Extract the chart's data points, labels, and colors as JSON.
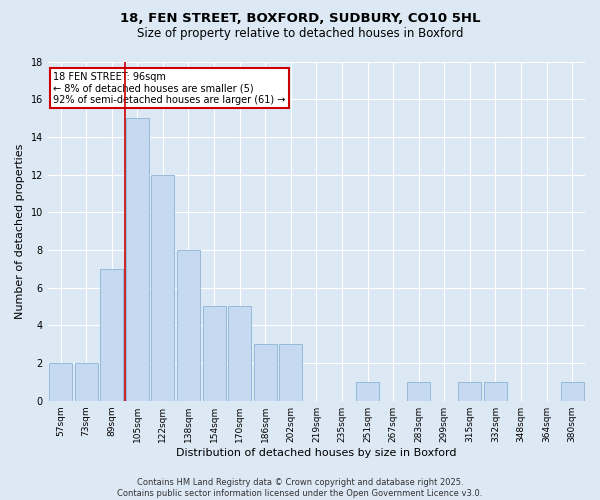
{
  "title1": "18, FEN STREET, BOXFORD, SUDBURY, CO10 5HL",
  "title2": "Size of property relative to detached houses in Boxford",
  "xlabel": "Distribution of detached houses by size in Boxford",
  "ylabel": "Number of detached properties",
  "categories": [
    "57sqm",
    "73sqm",
    "89sqm",
    "105sqm",
    "122sqm",
    "138sqm",
    "154sqm",
    "170sqm",
    "186sqm",
    "202sqm",
    "219sqm",
    "235sqm",
    "251sqm",
    "267sqm",
    "283sqm",
    "299sqm",
    "315sqm",
    "332sqm",
    "348sqm",
    "364sqm",
    "380sqm"
  ],
  "values": [
    2,
    2,
    7,
    15,
    12,
    8,
    5,
    5,
    3,
    3,
    0,
    0,
    1,
    0,
    1,
    0,
    1,
    1,
    0,
    0,
    1
  ],
  "bar_color": "#c5d9f0",
  "bar_edge_color": "#8ab4d4",
  "highlight_line_color": "#cc0000",
  "annotation_box_color": "#cc0000",
  "annotation_text": "18 FEN STREET: 96sqm\n← 8% of detached houses are smaller (5)\n92% of semi-detached houses are larger (61) →",
  "ylim": [
    0,
    18
  ],
  "yticks": [
    0,
    2,
    4,
    6,
    8,
    10,
    12,
    14,
    16,
    18
  ],
  "footer": "Contains HM Land Registry data © Crown copyright and database right 2025.\nContains public sector information licensed under the Open Government Licence v3.0.",
  "bg_color": "#dce9f5",
  "plot_bg_color": "#dce9f5",
  "grid_color": "#ffffff",
  "title_fontsize": 9.5,
  "subtitle_fontsize": 8.5,
  "axis_label_fontsize": 8,
  "tick_fontsize": 6.5,
  "annotation_fontsize": 7,
  "footer_fontsize": 6
}
